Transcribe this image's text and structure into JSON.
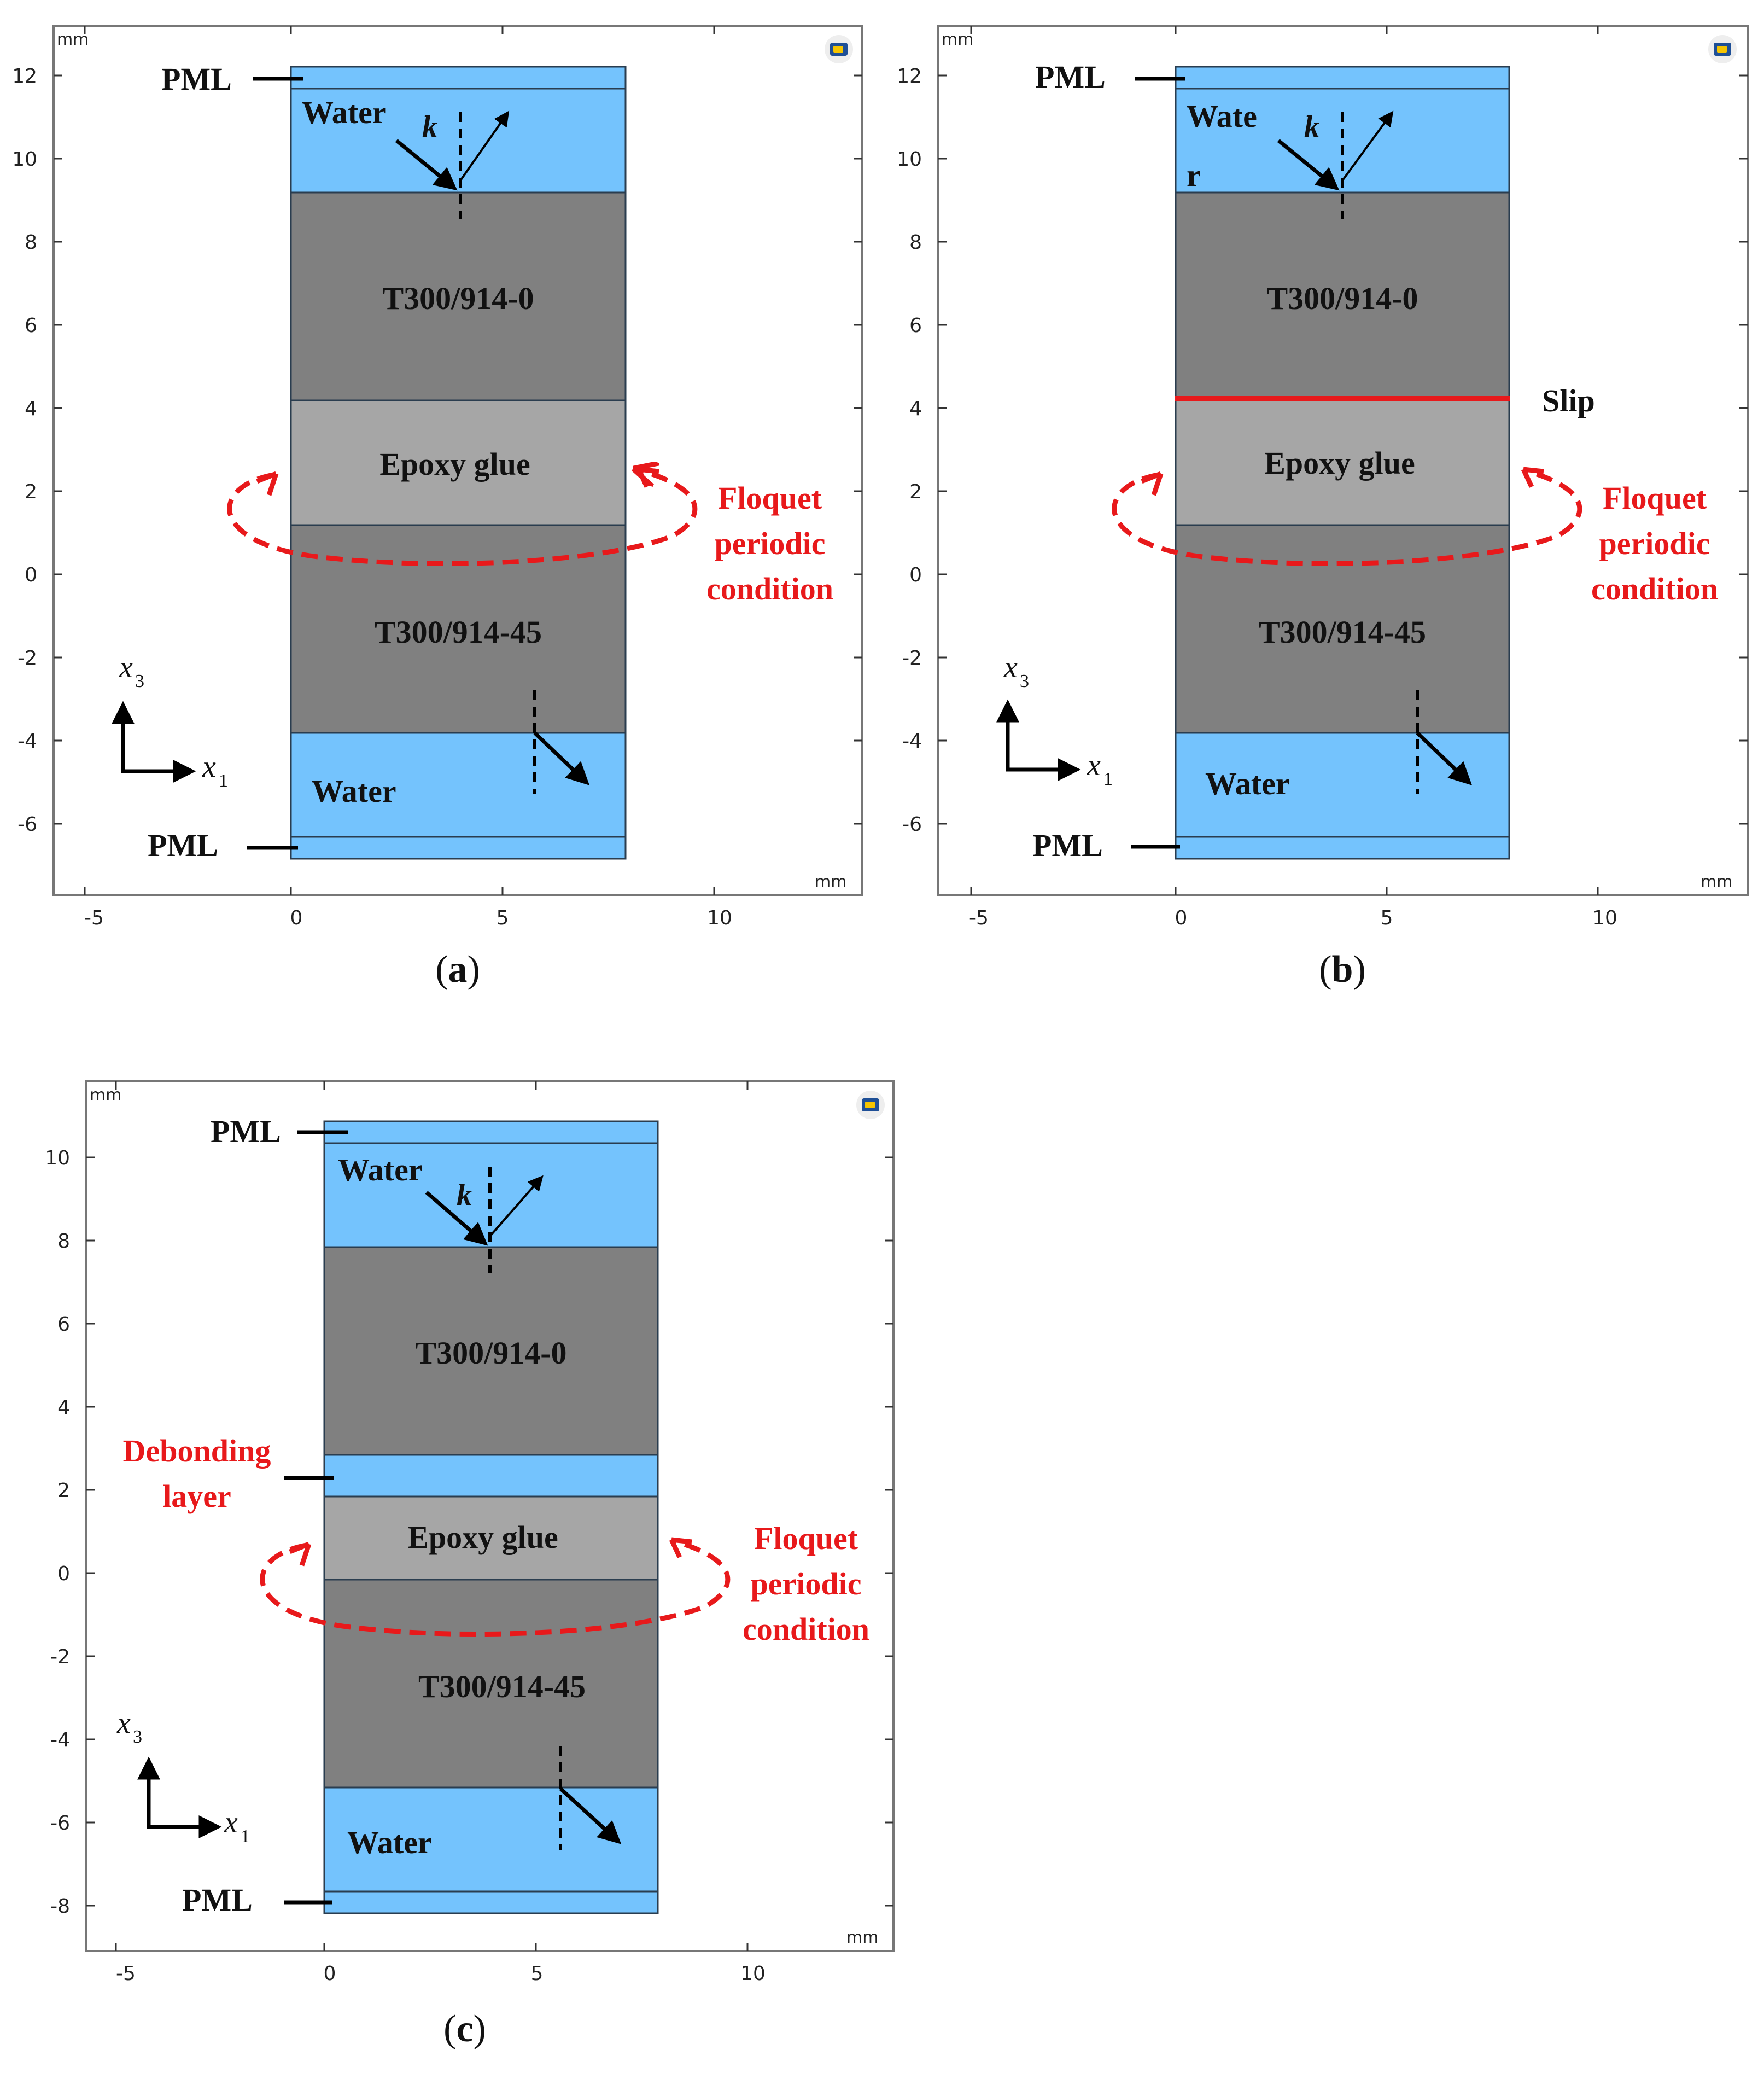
{
  "colors": {
    "water": "#74c3fd",
    "composite": "#808080",
    "epoxy": "#a6a6a6",
    "slip_line": "#e8191b",
    "annotation_red": "#e8191b"
  },
  "panels": [
    {
      "id": "a",
      "caption": "a",
      "unit_top": "mm",
      "unit_bottom": "mm",
      "x_ticks": [
        "-5",
        "0",
        "5",
        "10"
      ],
      "y_ticks": [
        "12",
        "10",
        "8",
        "6",
        "4",
        "2",
        "0",
        "-2",
        "-4",
        "-6"
      ],
      "layers": [
        {
          "name": "top-pml",
          "type": "water",
          "label": ""
        },
        {
          "name": "top-water",
          "type": "water",
          "label": "Water"
        },
        {
          "name": "top-composite",
          "type": "composite",
          "label": "T300/914-0"
        },
        {
          "name": "epoxy",
          "type": "epoxy",
          "label": "Epoxy glue"
        },
        {
          "name": "bottom-composite",
          "type": "composite",
          "label": "T300/914-45"
        },
        {
          "name": "bottom-water",
          "type": "water",
          "label": "Water"
        },
        {
          "name": "bottom-pml",
          "type": "water",
          "label": ""
        }
      ],
      "pml_top_label": "PML",
      "pml_bottom_label": "PML",
      "wave_label": "k",
      "floquet_label": [
        "Floquet",
        "periodic",
        "condition"
      ],
      "axis_x_label": "x",
      "axis_x_sub": "1",
      "axis_y_label": "x",
      "axis_y_sub": "3"
    },
    {
      "id": "b",
      "caption": "b",
      "unit_top": "mm",
      "unit_bottom": "mm",
      "x_ticks": [
        "-5",
        "0",
        "5",
        "10"
      ],
      "y_ticks": [
        "12",
        "10",
        "8",
        "6",
        "4",
        "2",
        "0",
        "-2",
        "-4",
        "-6"
      ],
      "layers": [
        {
          "name": "top-pml",
          "type": "water",
          "label": ""
        },
        {
          "name": "top-water",
          "type": "water",
          "label": "Wate"
        },
        {
          "name": "top-composite",
          "type": "composite",
          "label": "T300/914-0"
        },
        {
          "name": "epoxy",
          "type": "epoxy",
          "label": "Epoxy glue"
        },
        {
          "name": "bottom-composite",
          "type": "composite",
          "label": "T300/914-45"
        },
        {
          "name": "bottom-water",
          "type": "water",
          "label": "Water"
        },
        {
          "name": "bottom-pml",
          "type": "water",
          "label": ""
        }
      ],
      "water_label_extra": "r",
      "slip_label": "Slip",
      "pml_top_label": "PML",
      "pml_bottom_label": "PML",
      "wave_label": "k",
      "floquet_label": [
        "Floquet",
        "periodic",
        "condition"
      ],
      "axis_x_label": "x",
      "axis_x_sub": "1",
      "axis_y_label": "x",
      "axis_y_sub": "3"
    },
    {
      "id": "c",
      "caption": "c",
      "unit_top": "mm",
      "unit_bottom": "mm",
      "x_ticks": [
        "-5",
        "0",
        "5",
        "10"
      ],
      "y_ticks": [
        "10",
        "8",
        "6",
        "4",
        "2",
        "0",
        "-2",
        "-4",
        "-6",
        "-8"
      ],
      "layers": [
        {
          "name": "top-pml",
          "type": "water",
          "label": ""
        },
        {
          "name": "top-water",
          "type": "water",
          "label": "Water"
        },
        {
          "name": "top-composite",
          "type": "composite",
          "label": "T300/914-0"
        },
        {
          "name": "debonding",
          "type": "water",
          "label": ""
        },
        {
          "name": "epoxy",
          "type": "epoxy",
          "label": "Epoxy glue"
        },
        {
          "name": "bottom-composite",
          "type": "composite",
          "label": "T300/914-45"
        },
        {
          "name": "bottom-water",
          "type": "water",
          "label": "Water"
        },
        {
          "name": "bottom-pml",
          "type": "water",
          "label": ""
        }
      ],
      "debonding_label": [
        "Debonding",
        "layer"
      ],
      "pml_top_label": "PML",
      "pml_bottom_label": "PML",
      "wave_label": "k",
      "floquet_label": [
        "Floquet",
        "periodic",
        "condition"
      ],
      "axis_x_label": "x",
      "axis_x_sub": "1",
      "axis_y_label": "x",
      "axis_y_sub": "3"
    }
  ]
}
